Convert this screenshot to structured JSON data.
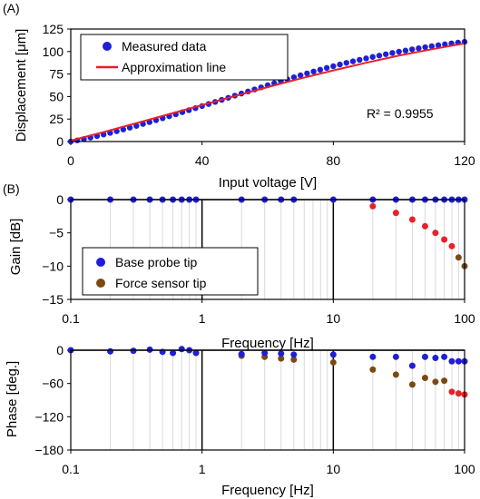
{
  "chart_data": [
    {
      "panel": "(A)",
      "type": "scatter",
      "xlabel": "Input voltage [V]",
      "ylabel": "Displacement [μm]",
      "xlim": [
        0,
        120
      ],
      "ylim": [
        0,
        125
      ],
      "xticks": [
        0,
        40,
        80,
        120
      ],
      "yticks": [
        0,
        25,
        50,
        75,
        100,
        125
      ],
      "legend": [
        "Measured data",
        "Approximation line"
      ],
      "legend_position": "top-left",
      "annotation": "R² = 0.9955",
      "grid": false,
      "colors": {
        "measured": "#1f1fd6",
        "fit": "#e8202a"
      },
      "series": [
        {
          "name": "Measured data",
          "kind": "points",
          "x": [
            0,
            2,
            4,
            6,
            8,
            10,
            12,
            14,
            16,
            18,
            20,
            22,
            24,
            26,
            28,
            30,
            32,
            34,
            36,
            38,
            40,
            42,
            44,
            46,
            48,
            50,
            52,
            54,
            56,
            58,
            60,
            62,
            64,
            66,
            68,
            70,
            72,
            74,
            76,
            78,
            80,
            82,
            84,
            86,
            88,
            90,
            92,
            94,
            96,
            98,
            100,
            102,
            104,
            106,
            108,
            110,
            112,
            114,
            116,
            118,
            120
          ],
          "y": [
            0,
            1.3,
            2.8,
            4.4,
            6,
            7.8,
            9.6,
            11.5,
            13.4,
            15.4,
            17.4,
            19.5,
            21.6,
            23.7,
            25.9,
            28.1,
            30.3,
            32.6,
            34.8,
            37.1,
            39.4,
            41.7,
            44,
            46.3,
            48.6,
            51,
            53.3,
            55.6,
            57.9,
            60.2,
            62.5,
            64.8,
            67,
            69.2,
            71.4,
            73.6,
            75.7,
            77.8,
            79.8,
            81.8,
            83.7,
            85.6,
            87.4,
            89.1,
            90.8,
            92.4,
            94,
            95.5,
            97,
            98.4,
            99.8,
            101.1,
            102.4,
            103.6,
            104.8,
            105.9,
            107,
            108,
            109,
            109.9,
            110.8
          ]
        },
        {
          "name": "Approximation line",
          "kind": "line",
          "x": [
            0,
            10,
            20,
            30,
            40,
            50,
            60,
            70,
            80,
            90,
            100,
            110,
            120
          ],
          "y": [
            1,
            10.5,
            20.5,
            30.5,
            40.5,
            50.5,
            60.5,
            70,
            79,
            87.5,
            95.5,
            102.5,
            109
          ]
        }
      ]
    },
    {
      "panel": "(B)",
      "type": "scatter",
      "xlabel": "Frequency [Hz]",
      "ylabel": "Gain [dB]",
      "xscale": "log",
      "xlim": [
        0.1,
        100
      ],
      "ylim": [
        -15,
        0
      ],
      "xticks": [
        0.1,
        1,
        10,
        100
      ],
      "xticklabels": [
        "0.1",
        "1",
        "10",
        "100"
      ],
      "yticks": [
        0,
        -5,
        -10,
        -15
      ],
      "legend": [
        "Base probe tip",
        "Force sensor tip"
      ],
      "legend_position": "bottom-left",
      "colors": {
        "base": "#1f1fd6",
        "force": "#7b4a12",
        "force_hi": "#e8202a"
      },
      "series": [
        {
          "name": "Base probe tip",
          "x": [
            0.1,
            0.2,
            0.3,
            0.4,
            0.5,
            0.6,
            0.7,
            0.8,
            0.9,
            2,
            3,
            4,
            5,
            10,
            20,
            30,
            40,
            50,
            60,
            70,
            80,
            90,
            100
          ],
          "y": [
            0,
            0,
            0,
            0,
            0,
            0,
            0,
            0,
            0,
            0,
            0,
            0,
            0,
            0,
            0,
            0,
            0,
            0,
            0,
            0,
            0,
            0,
            0
          ]
        },
        {
          "name": "Force sensor tip",
          "x": [
            20,
            30,
            40,
            50,
            60,
            70,
            80,
            90,
            100
          ],
          "y": [
            -1,
            -2,
            -3,
            -4,
            -5,
            -6,
            -7,
            -8.7,
            -10
          ]
        }
      ]
    },
    {
      "type": "scatter",
      "xlabel": "Frequency [Hz]",
      "ylabel": "Phase [deg.]",
      "xscale": "log",
      "xlim": [
        0.1,
        100
      ],
      "ylim": [
        -180,
        0
      ],
      "xticks": [
        0.1,
        1,
        10,
        100
      ],
      "xticklabels": [
        "0.1",
        "1",
        "10",
        "100"
      ],
      "yticks": [
        0,
        -60,
        -120,
        -180
      ],
      "series": [
        {
          "name": "Base probe tip",
          "x": [
            0.1,
            0.2,
            0.3,
            0.4,
            0.5,
            0.6,
            0.7,
            0.8,
            0.9,
            2,
            3,
            4,
            5,
            10,
            20,
            30,
            40,
            50,
            60,
            70,
            80,
            90,
            100
          ],
          "y": [
            0,
            -2,
            -1,
            1,
            -3,
            -5,
            2,
            0,
            -5,
            -7,
            -5,
            -6,
            -8,
            -8,
            -12,
            -12,
            -28,
            -12,
            -14,
            -12,
            -20,
            -20,
            -20
          ]
        },
        {
          "name": "Force sensor tip",
          "x": [
            2,
            3,
            4,
            5,
            10,
            20,
            30,
            40,
            50,
            60,
            70,
            80,
            90,
            100
          ],
          "y": [
            -10,
            -12,
            -15,
            -17,
            -22,
            -35,
            -44,
            -62,
            -50,
            -57,
            -55,
            -75,
            -78,
            -80
          ]
        }
      ]
    }
  ]
}
